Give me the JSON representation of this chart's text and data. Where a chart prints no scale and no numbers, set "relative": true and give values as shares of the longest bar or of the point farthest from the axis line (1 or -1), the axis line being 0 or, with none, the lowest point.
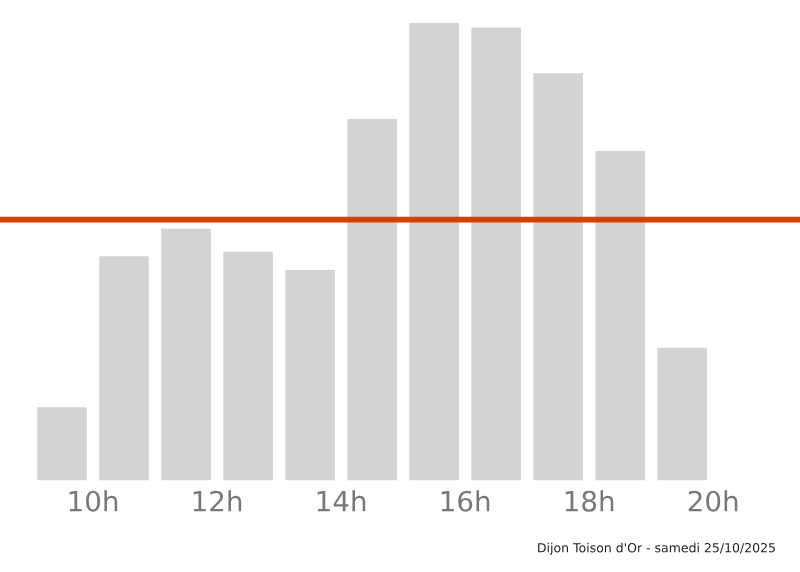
{
  "chart_data": {
    "type": "bar",
    "relative": true,
    "x": [
      9.5,
      10.5,
      11.5,
      12.5,
      13.5,
      14.5,
      15.5,
      16.5,
      17.5,
      18.5,
      19.5
    ],
    "values": [
      0.16,
      0.49,
      0.55,
      0.5,
      0.46,
      0.79,
      1,
      0.99,
      0.89,
      0.72,
      0.29
    ],
    "color": "#d3d3d3",
    "xlim": [
      8.5,
      21.4
    ],
    "xticks": [
      {
        "value": 10,
        "label": "10h"
      },
      {
        "value": 12,
        "label": "12h"
      },
      {
        "value": 14,
        "label": "14h"
      },
      {
        "value": 16,
        "label": "16h"
      },
      {
        "value": 18,
        "label": "18h"
      },
      {
        "value": 20,
        "label": "20h"
      }
    ],
    "ref_lines": [
      {
        "axis": "y",
        "value": 0.57,
        "color": "#cc4400"
      }
    ],
    "annotations": [
      "Dijon Toison d'Or - samedi 25/10/2025"
    ],
    "grid": false,
    "legend": false
  }
}
